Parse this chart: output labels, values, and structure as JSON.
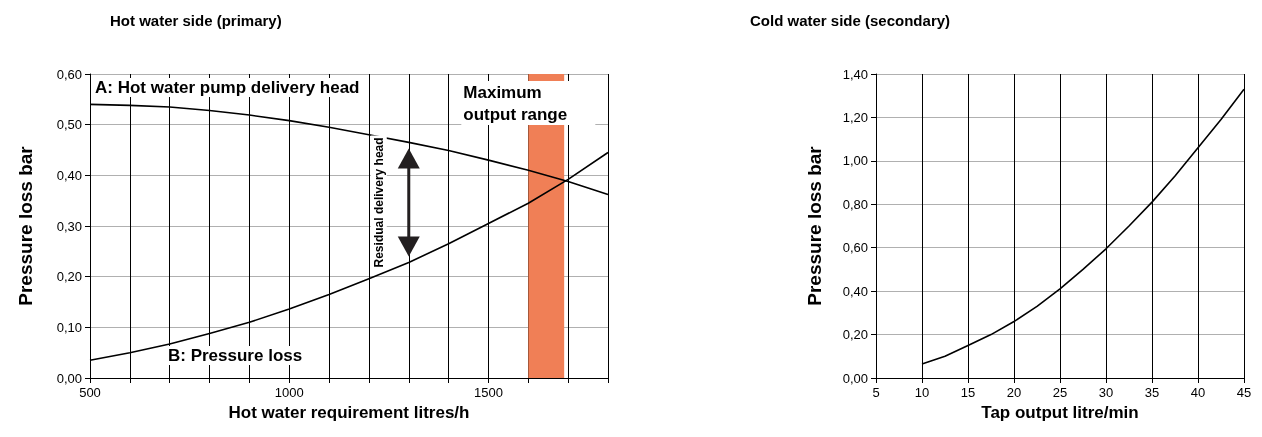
{
  "chart_data": [
    {
      "type": "line",
      "title": "Hot water side (primary)",
      "xlabel": "Hot water requirement litres/h",
      "ylabel": "Pressure loss bar",
      "x": [
        500,
        600,
        700,
        800,
        900,
        1000,
        1100,
        1200,
        1300,
        1400,
        1500,
        1600,
        1700,
        1800
      ],
      "series": [
        {
          "name": "A: Hot water pump delivery head",
          "color": "#000000",
          "values": [
            0.54,
            0.538,
            0.535,
            0.528,
            0.519,
            0.508,
            0.495,
            0.48,
            0.465,
            0.449,
            0.43,
            0.41,
            0.388,
            0.362
          ]
        },
        {
          "name": "B: Pressure loss",
          "color": "#000000",
          "values": [
            0.035,
            0.05,
            0.067,
            0.088,
            0.11,
            0.136,
            0.165,
            0.196,
            0.228,
            0.265,
            0.305,
            0.345,
            0.392,
            0.445
          ]
        }
      ],
      "xlim": [
        500,
        1800
      ],
      "xticks": [
        500,
        {
          "value": 600,
          "label": null
        },
        {
          "value": 700,
          "label": null
        },
        {
          "value": 800,
          "label": null
        },
        {
          "value": 900,
          "label": null
        },
        1000,
        {
          "value": 1100,
          "label": null
        },
        {
          "value": 1200,
          "label": null
        },
        {
          "value": 1300,
          "label": null
        },
        {
          "value": 1400,
          "label": null
        },
        1500,
        {
          "value": 1600,
          "label": null
        },
        {
          "value": 1700,
          "label": null
        },
        {
          "value": 1800,
          "label": null
        }
      ],
      "ylim": [
        0,
        0.6
      ],
      "yticks": [
        {
          "value": 0,
          "label": "0,00"
        },
        {
          "value": 0.1,
          "label": "0,10"
        },
        {
          "value": 0.2,
          "label": "0,20"
        },
        {
          "value": 0.3,
          "label": "0,30"
        },
        {
          "value": 0.4,
          "label": "0,40"
        },
        {
          "value": 0.5,
          "label": "0,50"
        },
        {
          "value": 0.6,
          "label": "0,60"
        }
      ],
      "bands": [
        {
          "axis": "x",
          "from": 1600,
          "to": 1690,
          "label": "Maximum output range",
          "color": "#f07f56"
        }
      ],
      "annotations": [
        "Residual delivery head"
      ],
      "grid": true,
      "marker": "none",
      "line_style": "solid",
      "legend": false
    },
    {
      "type": "line",
      "title": "Cold water side (secondary)",
      "xlabel": "Tap output litre/min",
      "ylabel": "Pressure loss bar",
      "x": [
        10,
        12.5,
        15,
        17.5,
        20,
        22.5,
        25,
        27.5,
        30,
        32.5,
        35,
        37.5,
        40,
        42.5,
        45
      ],
      "series": [
        {
          "color": "#000000",
          "values": [
            0.065,
            0.1,
            0.15,
            0.2,
            0.26,
            0.33,
            0.41,
            0.5,
            0.595,
            0.7,
            0.81,
            0.93,
            1.06,
            1.19,
            1.33
          ]
        }
      ],
      "xlim": [
        5,
        45
      ],
      "xticks": [
        5,
        10,
        15,
        20,
        25,
        30,
        35,
        40,
        45
      ],
      "ylim": [
        0,
        1.4
      ],
      "yticks": [
        {
          "value": 0,
          "label": "0,00"
        },
        {
          "value": 0.2,
          "label": "0,20"
        },
        {
          "value": 0.4,
          "label": "0,40"
        },
        {
          "value": 0.6,
          "label": "0,60"
        },
        {
          "value": 0.8,
          "label": "0,80"
        },
        {
          "value": 1.0,
          "label": "1,00"
        },
        {
          "value": 1.2,
          "label": "1,20"
        },
        {
          "value": 1.4,
          "label": "1,40"
        }
      ],
      "grid": true,
      "marker": "none",
      "line_style": "solid",
      "legend": false
    }
  ]
}
